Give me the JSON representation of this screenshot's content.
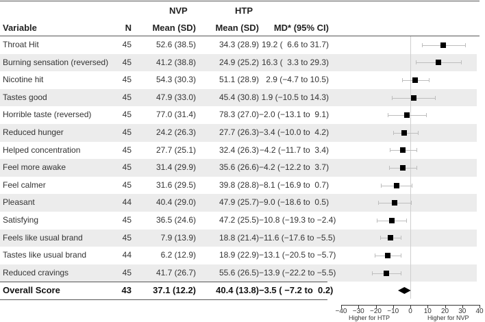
{
  "header": {
    "group1": "NVP",
    "group2": "HTP",
    "col_variable": "Variable",
    "col_n": "N",
    "col_nvp": "Mean (SD)",
    "col_htp": "Mean (SD)",
    "col_md": "MD* (95% CI)"
  },
  "rows": [
    {
      "variable": "Throat Hit",
      "n": "45",
      "nvp": "52.6 (38.5)",
      "htp": "34.3 (28.9)",
      "md": "19.2 (  6.6 to 31.7)"
    },
    {
      "variable": "Burning sensation (reversed)",
      "n": "45",
      "nvp": "41.2 (38.8)",
      "htp": "24.9 (25.2)",
      "md": "16.3 (  3.3 to 29.3)"
    },
    {
      "variable": "Nicotine hit",
      "n": "45",
      "nvp": "54.3 (30.3)",
      "htp": "51.1 (28.9)",
      "md": "2.9 (−4.7 to 10.5)"
    },
    {
      "variable": "Tastes good",
      "n": "45",
      "nvp": "47.9 (33.0)",
      "htp": "45.4 (30.8)",
      "md": "1.9 (−10.5 to 14.3)"
    },
    {
      "variable": "Horrible taste (reversed)",
      "n": "45",
      "nvp": "77.0 (31.4)",
      "htp": "78.3 (27.0)",
      "md": "−2.0 (−13.1 to  9.1)"
    },
    {
      "variable": "Reduced hunger",
      "n": "45",
      "nvp": "24.2 (26.3)",
      "htp": "27.7 (26.3)",
      "md": "−3.4 (−10.0 to  4.2)"
    },
    {
      "variable": "Helped concentration",
      "n": "45",
      "nvp": "27.7 (25.1)",
      "htp": "32.4 (26.3)",
      "md": "−4.2 (−11.7 to  3.4)"
    },
    {
      "variable": "Feel more awake",
      "n": "45",
      "nvp": "31.4 (29.9)",
      "htp": "35.6 (26.6)",
      "md": "−4.2 (−12.2 to  3.7)"
    },
    {
      "variable": "Feel calmer",
      "n": "45",
      "nvp": "31.6 (29.5)",
      "htp": "39.8 (28.8)",
      "md": "−8.1 (−16.9 to  0.7)"
    },
    {
      "variable": "Pleasant",
      "n": "44",
      "nvp": "40.4 (29.0)",
      "htp": "47.9 (25.7)",
      "md": "−9.0 (−18.6 to  0.5)"
    },
    {
      "variable": "Satisfying",
      "n": "45",
      "nvp": "36.5 (24.6)",
      "htp": "47.2 (25.5)",
      "md": "−10.8 (−19.3 to −2.4)"
    },
    {
      "variable": "Feels like usual brand",
      "n": "45",
      "nvp": "7.9 (13.9)",
      "htp": "18.8 (21.4)",
      "md": "−11.6 (−17.6 to −5.5)"
    },
    {
      "variable": "Tastes like usual brand",
      "n": "44",
      "nvp": "6.2 (12.9)",
      "htp": "18.9 (22.9)",
      "md": "−13.1 (−20.5 to −5.7)"
    },
    {
      "variable": "Reduced cravings",
      "n": "45",
      "nvp": "41.7 (26.7)",
      "htp": "55.6 (26.5)",
      "md": "−13.9 (−22.2 to −5.5)"
    }
  ],
  "overall": {
    "variable": "Overall Score",
    "n": "43",
    "nvp": "37.1 (12.2)",
    "htp": "40.4 (13.8)",
    "md": "−3.5 ( −7.2 to  0.2)"
  },
  "axis": {
    "ticks": [
      "−40",
      "−30",
      "−20",
      "−10",
      "0",
      "10",
      "20",
      "30",
      "40"
    ],
    "left_label": "Higher for HTP",
    "right_label": "Higher for NVP"
  },
  "chart_data": {
    "type": "forest",
    "title": "",
    "xlabel_left": "Higher for HTP",
    "xlabel_right": "Higher for NVP",
    "xlim": [
      -40,
      40
    ],
    "xticks": [
      -40,
      -30,
      -20,
      -10,
      0,
      10,
      20,
      30,
      40
    ],
    "categories": [
      "Throat Hit",
      "Burning sensation (reversed)",
      "Nicotine hit",
      "Tastes good",
      "Horrible taste (reversed)",
      "Reduced hunger",
      "Helped concentration",
      "Feel more awake",
      "Feel calmer",
      "Pleasant",
      "Satisfying",
      "Feels like usual brand",
      "Tastes like usual brand",
      "Reduced cravings",
      "Overall Score"
    ],
    "estimate": [
      19.2,
      16.3,
      2.9,
      1.9,
      -2.0,
      -3.4,
      -4.2,
      -4.2,
      -8.1,
      -9.0,
      -10.8,
      -11.6,
      -13.1,
      -13.9,
      -3.5
    ],
    "lower": [
      6.6,
      3.3,
      -4.7,
      -10.5,
      -13.1,
      -10.0,
      -11.7,
      -12.2,
      -16.9,
      -18.6,
      -19.3,
      -17.6,
      -20.5,
      -22.2,
      -7.2
    ],
    "upper": [
      31.7,
      29.3,
      10.5,
      14.3,
      9.1,
      4.2,
      3.4,
      3.7,
      0.7,
      0.5,
      -2.4,
      -5.5,
      -5.7,
      -5.5,
      0.2
    ],
    "summary_row": "Overall Score"
  }
}
